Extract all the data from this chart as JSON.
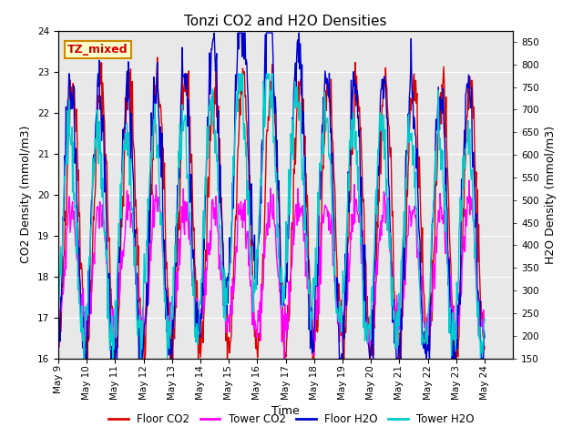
{
  "title": "Tonzi CO2 and H2O Densities",
  "xlabel": "Time",
  "ylabel_left": "CO2 Density (mmol/m3)",
  "ylabel_right": "H2O Density (mmol/m3)",
  "annotation": "TZ_mixed",
  "annotation_facecolor": "#ffffcc",
  "annotation_edgecolor": "#cc8800",
  "annotation_textcolor": "#cc0000",
  "xlim_start": 8,
  "xlim_end": 24,
  "ylim_left": [
    16.0,
    24.0
  ],
  "ylim_right": [
    150,
    875
  ],
  "yticks_left": [
    16.0,
    17.0,
    18.0,
    19.0,
    20.0,
    21.0,
    22.0,
    23.0,
    24.0
  ],
  "yticks_right": [
    150,
    200,
    250,
    300,
    350,
    400,
    450,
    500,
    550,
    600,
    650,
    700,
    750,
    800,
    850
  ],
  "xtick_labels": [
    "May 9",
    "May 10",
    "May 11",
    "May 12",
    "May 13",
    "May 14",
    "May 15",
    "May 16",
    "May 17",
    "May 18",
    "May 19",
    "May 20",
    "May 21",
    "May 22",
    "May 23",
    "May 24"
  ],
  "xtick_positions": [
    8,
    9,
    10,
    11,
    12,
    13,
    14,
    15,
    16,
    17,
    18,
    19,
    20,
    21,
    22,
    23
  ],
  "plot_bg_color": "#e8e8e8",
  "fig_bg_color": "#ffffff",
  "legend_entries": [
    "Floor CO2",
    "Tower CO2",
    "Floor H2O",
    "Tower H2O"
  ],
  "legend_colors": [
    "#dd0000",
    "#ff00ff",
    "#0000cc",
    "#00cccc"
  ],
  "grid_color": "#ffffff",
  "title_fontsize": 11,
  "axis_fontsize": 9,
  "tick_fontsize": 7.5,
  "linewidth": 1.0
}
